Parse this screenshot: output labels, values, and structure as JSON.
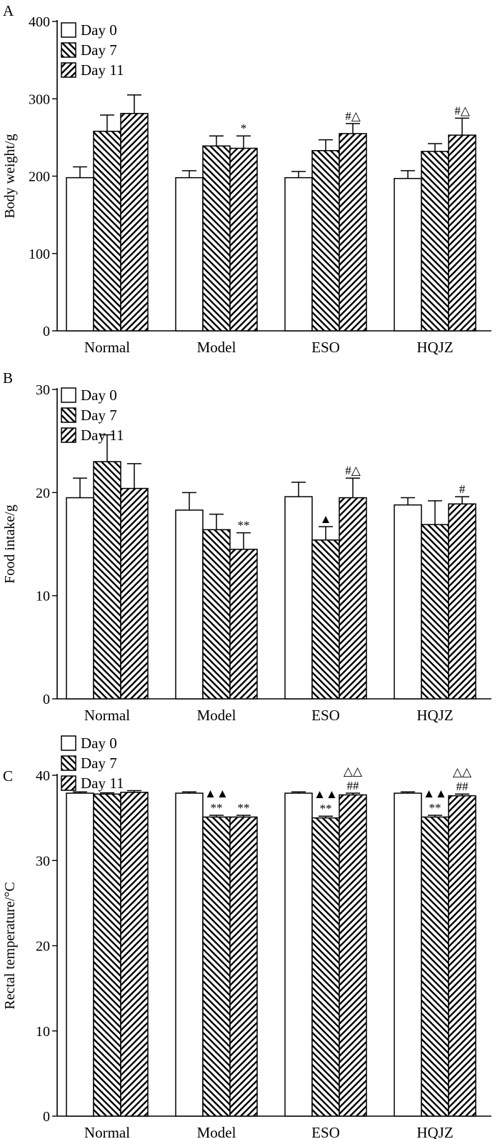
{
  "figure": {
    "legend": [
      "Day 0",
      "Day 7",
      "Day 11"
    ],
    "categories": [
      "Normal",
      "Model",
      "ESO",
      "HQJZ"
    ]
  },
  "chart_data": [
    {
      "type": "bar",
      "panel_label": "A",
      "title": "",
      "xlabel": "",
      "ylabel": "Body weight/g",
      "ylim": [
        0,
        400
      ],
      "yticks": [
        0,
        100,
        200,
        300,
        400
      ],
      "categories": [
        "Normal",
        "Model",
        "ESO",
        "HQJZ"
      ],
      "series": [
        {
          "name": "Day 0",
          "values": [
            198,
            198,
            198,
            197
          ],
          "errors": [
            14,
            9,
            8,
            10
          ]
        },
        {
          "name": "Day 7",
          "values": [
            258,
            239,
            233,
            232
          ],
          "errors": [
            21,
            13,
            14,
            10
          ]
        },
        {
          "name": "Day 11",
          "values": [
            281,
            236,
            255,
            253
          ],
          "errors": [
            24,
            16,
            13,
            22
          ]
        }
      ],
      "annotations": [
        {
          "category": "Model",
          "series": "Day 11",
          "text": "*"
        },
        {
          "category": "ESO",
          "series": "Day 11",
          "text": "#△"
        },
        {
          "category": "HQJZ",
          "series": "Day 11",
          "text": "#△"
        }
      ],
      "legend_position": "top-left"
    },
    {
      "type": "bar",
      "panel_label": "B",
      "title": "",
      "xlabel": "",
      "ylabel": "Food intake/g",
      "ylim": [
        0,
        30
      ],
      "yticks": [
        0,
        10,
        20,
        30
      ],
      "categories": [
        "Normal",
        "Model",
        "ESO",
        "HQJZ"
      ],
      "series": [
        {
          "name": "Day 0",
          "values": [
            19.5,
            18.3,
            19.6,
            18.8
          ],
          "errors": [
            1.9,
            1.7,
            1.4,
            0.7
          ]
        },
        {
          "name": "Day 7",
          "values": [
            23.0,
            16.4,
            15.4,
            16.9
          ],
          "errors": [
            2.6,
            1.5,
            1.3,
            2.3
          ]
        },
        {
          "name": "Day 11",
          "values": [
            20.4,
            14.5,
            19.5,
            18.9
          ],
          "errors": [
            2.4,
            1.6,
            1.9,
            0.7
          ]
        }
      ],
      "annotations": [
        {
          "category": "Model",
          "series": "Day 11",
          "text": "**"
        },
        {
          "category": "ESO",
          "series": "Day 7",
          "text": "▲"
        },
        {
          "category": "ESO",
          "series": "Day 11",
          "text": "#△"
        },
        {
          "category": "HQJZ",
          "series": "Day 11",
          "text": "#"
        }
      ],
      "legend_position": "top-left"
    },
    {
      "type": "bar",
      "panel_label": "C",
      "title": "",
      "xlabel": "",
      "ylabel": "Rectal temperature/°C",
      "ylim": [
        0,
        40
      ],
      "yticks": [
        0,
        10,
        20,
        30,
        40
      ],
      "categories": [
        "Normal",
        "Model",
        "ESO",
        "HQJZ"
      ],
      "series": [
        {
          "name": "Day 0",
          "values": [
            37.9,
            37.9,
            37.9,
            37.9
          ],
          "errors": [
            0.15,
            0.15,
            0.15,
            0.15
          ]
        },
        {
          "name": "Day 7",
          "values": [
            37.8,
            35.1,
            35.0,
            35.1
          ],
          "errors": [
            0.15,
            0.2,
            0.2,
            0.2
          ]
        },
        {
          "name": "Day 11",
          "values": [
            38.0,
            35.1,
            37.7,
            37.6
          ],
          "errors": [
            0.2,
            0.2,
            0.2,
            0.2
          ]
        }
      ],
      "annotations": [
        {
          "category": "Model",
          "series": "Day 7",
          "text": "**",
          "upper": "▲▲"
        },
        {
          "category": "Model",
          "series": "Day 11",
          "text": "**"
        },
        {
          "category": "ESO",
          "series": "Day 7",
          "text": "**",
          "upper": "▲▲"
        },
        {
          "category": "ESO",
          "series": "Day 11",
          "text": "##",
          "upper": "△△"
        },
        {
          "category": "HQJZ",
          "series": "Day 7",
          "text": "**",
          "upper": "▲▲"
        },
        {
          "category": "HQJZ",
          "series": "Day 11",
          "text": "##",
          "upper": "△△"
        }
      ],
      "legend_position": "top-left"
    }
  ]
}
